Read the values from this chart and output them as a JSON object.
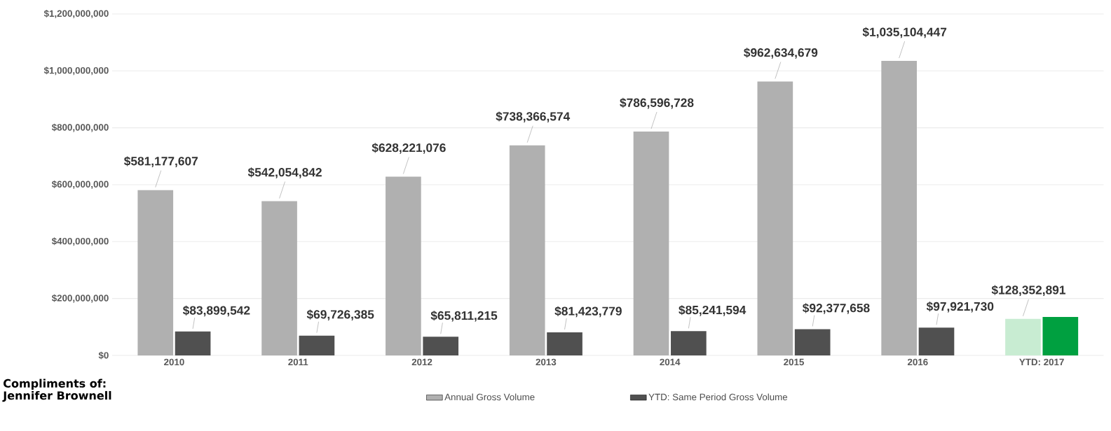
{
  "chart_data": {
    "type": "bar",
    "categories": [
      "2010",
      "2011",
      "2012",
      "2013",
      "2014",
      "2015",
      "2016",
      "YTD: 2017"
    ],
    "series": [
      {
        "name": "Annual Gross Volume",
        "color": "#b0b0b0",
        "colors": [
          "#b0b0b0",
          "#b0b0b0",
          "#b0b0b0",
          "#b0b0b0",
          "#b0b0b0",
          "#b0b0b0",
          "#b0b0b0",
          "#c8ecd2"
        ],
        "values": [
          581177607,
          542054842,
          628221076,
          738366574,
          786596728,
          962634679,
          1035104447,
          128352891
        ],
        "value_labels": [
          "$581,177,607",
          "$542,054,842",
          "$628,221,076",
          "$738,366,574",
          "$786,596,728",
          "$962,634,679",
          "$1,035,104,447",
          "$128,352,891"
        ]
      },
      {
        "name": "YTD: Same Period Gross Volume",
        "color": "#505050",
        "colors": [
          "#505050",
          "#505050",
          "#505050",
          "#505050",
          "#505050",
          "#505050",
          "#505050",
          "#00a040"
        ],
        "values": [
          83899542,
          69726385,
          65811215,
          81423779,
          85241594,
          92377658,
          97921730,
          135000000
        ],
        "value_labels": [
          "$83,899,542",
          "$69,726,385",
          "$65,811,215",
          "$81,423,779",
          "$85,241,594",
          "$92,377,658",
          "$97,921,730",
          null
        ]
      }
    ],
    "ylim": [
      0,
      1200000000
    ],
    "yticks": [
      {
        "value": 0,
        "label": "$0"
      },
      {
        "value": 200000000,
        "label": "$200,000,000"
      },
      {
        "value": 400000000,
        "label": "$400,000,000"
      },
      {
        "value": 600000000,
        "label": "$600,000,000"
      },
      {
        "value": 800000000,
        "label": "$800,000,000"
      },
      {
        "value": 1000000000,
        "label": "$1,000,000,000"
      },
      {
        "value": 1200000000,
        "label": "$1,200,000,000"
      }
    ],
    "grid": "y",
    "legend": "bottom",
    "annotations": [
      "Compliments of:",
      "Jennifer Brownell"
    ]
  }
}
